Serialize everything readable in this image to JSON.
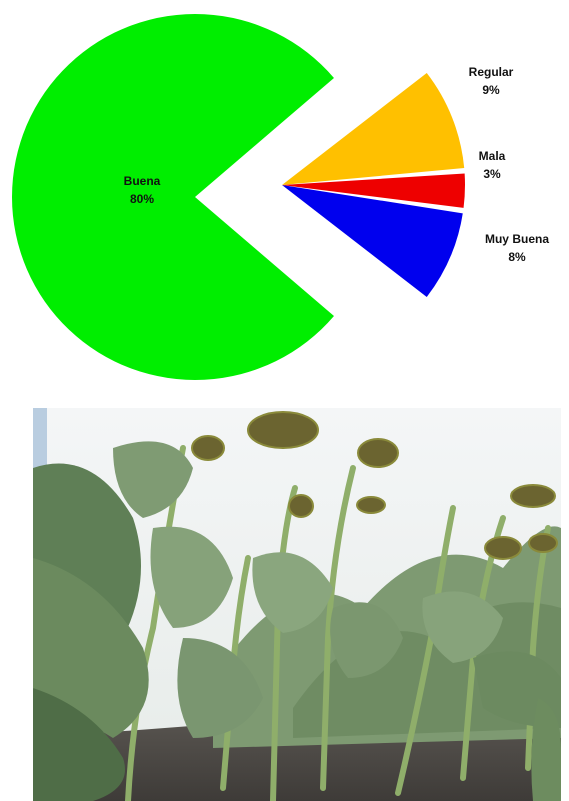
{
  "chart_data": {
    "type": "pie",
    "title": "",
    "exploded": true,
    "slices": [
      {
        "name": "Buena",
        "percent_label": "80%",
        "value": 80,
        "color": "#00EE00",
        "label_position": "inside"
      },
      {
        "name": "Muy Buena",
        "percent_label": "8%",
        "value": 8,
        "color": "#0000EE",
        "label_position": "outside-right"
      },
      {
        "name": "Mala",
        "percent_label": "3%",
        "value": 3,
        "color": "#EE0000",
        "label_position": "outside-right"
      },
      {
        "name": "Regular",
        "percent_label": "9%",
        "value": 9,
        "color": "#FFC000",
        "label_position": "outside-right"
      }
    ]
  },
  "photo": {
    "icon": "sunflower-field-photo"
  }
}
